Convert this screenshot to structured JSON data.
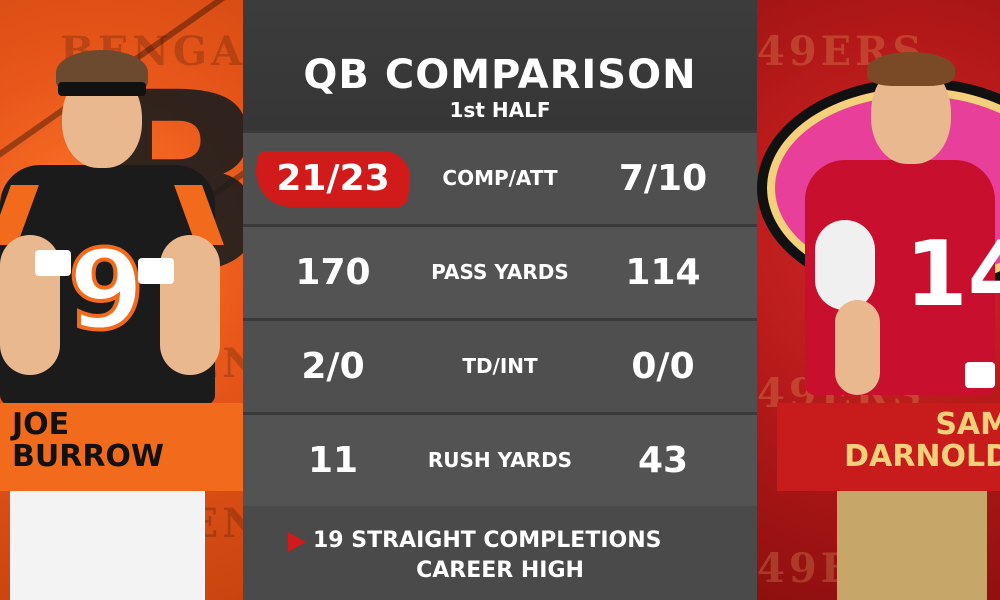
{
  "graphic": {
    "title": "QB COMPARISON",
    "subtitle": "1st HALF"
  },
  "players": {
    "left": {
      "first_name": "JOE",
      "last_name": "BURROW",
      "jersey_number": "9",
      "watermark": "BENGA",
      "team_color": "#f26b1d"
    },
    "right": {
      "first_name": "SAM",
      "last_name": "DARNOLD",
      "jersey_number": "14",
      "watermark": "49ERS",
      "team_color": "#c81c1c"
    }
  },
  "stats": [
    {
      "left": "21/23",
      "label": "COMP/ATT",
      "right": "7/10",
      "highlight_left": true
    },
    {
      "left": "170",
      "label": "PASS YARDS",
      "right": "114"
    },
    {
      "left": "2/0",
      "label": "TD/INT",
      "right": "0/0"
    },
    {
      "left": "11",
      "label": "RUSH YARDS",
      "right": "43"
    }
  ],
  "note": {
    "line1": "19 STRAIGHT COMPLETIONS",
    "line2": "CAREER HIGH",
    "marker_icon": "play-arrow-icon"
  },
  "colors": {
    "highlight": "#d11a1a",
    "gold": "#f2d17a"
  }
}
